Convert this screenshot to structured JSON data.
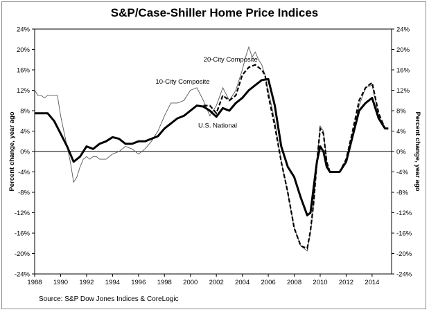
{
  "chart_data": {
    "type": "line",
    "title": "S&P/Case-Shiller Home Price Indices",
    "ylabel_left": "Percent change, year ago",
    "ylabel_right": "Percent change, year ago",
    "xlabel": "",
    "source": "Source: S&P Dow Jones Indices & CoreLogic",
    "xlim": [
      1988,
      2015.5
    ],
    "ylim": [
      -24,
      24
    ],
    "x_ticks": [
      "1988",
      "1990",
      "1992",
      "1994",
      "1996",
      "1998",
      "2000",
      "2002",
      "2004",
      "2006",
      "2008",
      "2010",
      "2012",
      "2014"
    ],
    "y_ticks": [
      "24%",
      "20%",
      "16%",
      "12%",
      "8%",
      "4%",
      "0%",
      "-4%",
      "-8%",
      "-12%",
      "-16%",
      "-20%",
      "-24%"
    ],
    "grid": false,
    "series": [
      {
        "name": "10-City Composite",
        "style": "thin-solid",
        "x": [
          1988,
          1988.25,
          1988.5,
          1988.75,
          1989,
          1989.25,
          1989.5,
          1989.75,
          1990,
          1990.25,
          1990.5,
          1990.75,
          1991,
          1991.25,
          1991.5,
          1991.75,
          1992,
          1992.25,
          1992.5,
          1992.75,
          1993,
          1993.5,
          1994,
          1994.5,
          1995,
          1995.5,
          1996,
          1996.5,
          1997,
          1997.5,
          1998,
          1998.5,
          1999,
          1999.5,
          2000,
          2000.5,
          2001,
          2001.5,
          2002,
          2002.5,
          2003,
          2003.5,
          2004,
          2004.25,
          2004.5,
          2004.75,
          2005,
          2005.25,
          2005.5,
          2005.75,
          2006,
          2006.5,
          2007,
          2007.5,
          2008,
          2008.5,
          2009,
          2009.25,
          2009.5,
          2009.75,
          2010,
          2010.25,
          2010.5,
          2010.75,
          2011,
          2011.5,
          2012,
          2012.5,
          2013,
          2013.5,
          2014,
          2014.5,
          2015,
          2015.25
        ],
        "y": [
          12,
          11,
          11,
          10.5,
          11,
          11,
          11,
          11,
          7,
          4,
          1,
          -2,
          -6,
          -5,
          -3,
          -1.5,
          -1,
          -1.5,
          -1,
          -1,
          -1.5,
          -1.5,
          -0.5,
          0,
          1,
          0.5,
          -0.5,
          0.5,
          2,
          4,
          7,
          9.5,
          9.5,
          10,
          12,
          12.5,
          10,
          7,
          9,
          12.5,
          10,
          12,
          16,
          18.5,
          20.5,
          18.5,
          19.5,
          18,
          17,
          15,
          12,
          6,
          -2,
          -8,
          -15,
          -18.5,
          -19.5,
          -16,
          -10,
          -2,
          5,
          4,
          -2,
          -4,
          -4,
          -4,
          -2,
          3,
          9,
          12.5,
          13,
          7,
          4.5,
          4.5
        ]
      },
      {
        "name": "20-City Composite",
        "style": "dashed",
        "x": [
          2001,
          2001.5,
          2002,
          2002.5,
          2003,
          2003.5,
          2004,
          2004.5,
          2005,
          2005.25,
          2005.5,
          2005.75,
          2006,
          2006.5,
          2007,
          2007.5,
          2008,
          2008.5,
          2009,
          2009.25,
          2009.5,
          2009.75,
          2010,
          2010.25,
          2010.5,
          2010.75,
          2011,
          2011.5,
          2012,
          2012.5,
          2013,
          2013.5,
          2014,
          2014.5,
          2015,
          2015.25
        ],
        "y": [
          9,
          9,
          7.5,
          11,
          10,
          11,
          15,
          16.5,
          17,
          16.5,
          16,
          15,
          11,
          5,
          -2,
          -8,
          -15,
          -18.5,
          -19,
          -15.5,
          -10,
          -2,
          4.5,
          3.5,
          -2,
          -4,
          -4,
          -4,
          -1.5,
          4,
          10,
          12.5,
          13.5,
          7.5,
          4.5,
          4.5
        ]
      },
      {
        "name": "U.S. National",
        "style": "thick-solid",
        "x": [
          1988,
          1988.5,
          1989,
          1989.5,
          1990,
          1990.5,
          1991,
          1991.5,
          1992,
          1992.5,
          1993,
          1993.5,
          1994,
          1994.5,
          1995,
          1995.5,
          1996,
          1996.5,
          1997,
          1997.5,
          1998,
          1998.5,
          1999,
          1999.5,
          2000,
          2000.5,
          2001,
          2001.5,
          2002,
          2002.5,
          2003,
          2003.5,
          2004,
          2004.5,
          2005,
          2005.5,
          2006,
          2006.5,
          2007,
          2007.5,
          2008,
          2008.5,
          2009,
          2009.25,
          2009.5,
          2009.75,
          2010,
          2010.25,
          2010.5,
          2010.75,
          2011,
          2011.5,
          2012,
          2012.5,
          2013,
          2013.5,
          2014,
          2014.5,
          2015,
          2015.25
        ],
        "y": [
          7.5,
          7.5,
          7.5,
          6,
          3.5,
          1,
          -2,
          -1,
          1,
          0.5,
          1.5,
          2,
          2.8,
          2.5,
          1.5,
          1.5,
          2,
          2,
          2.5,
          3,
          4.5,
          5.5,
          6.5,
          7,
          8,
          9,
          8.8,
          8,
          6.8,
          8.5,
          8,
          9.5,
          10.5,
          12,
          13,
          14,
          14.2,
          9,
          1,
          -3,
          -5,
          -9,
          -12.5,
          -12,
          -7,
          -2,
          1,
          0,
          -3,
          -4,
          -4,
          -4,
          -2,
          3,
          8,
          9.5,
          10.5,
          6.5,
          4.5,
          4.5
        ]
      }
    ],
    "annotations": [
      {
        "text": "20-City Composite",
        "x": 2003.1,
        "y": 17.6
      },
      {
        "text": "10-City Composite",
        "x": 1999.4,
        "y": 13.3
      },
      {
        "text": "U.S. National",
        "x": 2002.1,
        "y": 4.7
      }
    ]
  }
}
